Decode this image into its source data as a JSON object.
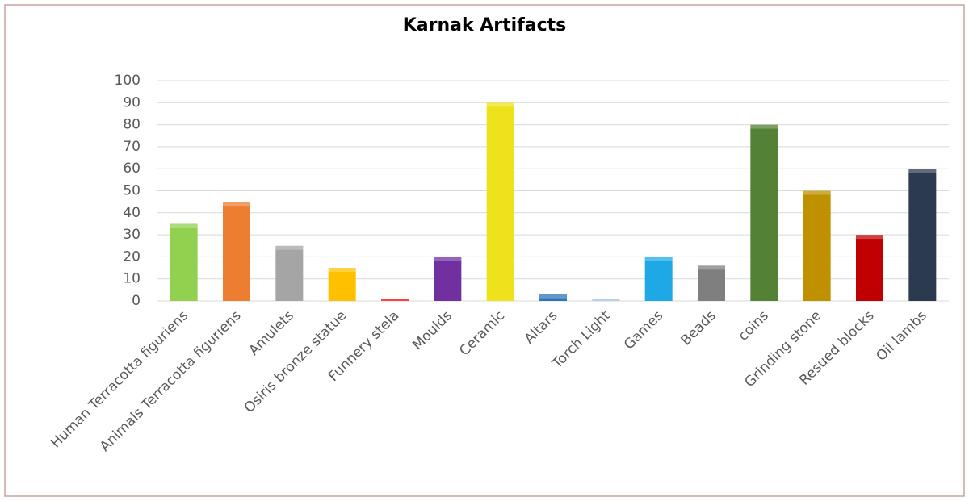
{
  "chart_data": {
    "type": "bar",
    "title": "Karnak Artifacts",
    "categories": [
      "Human  Terracotta figuriens",
      "Animals Terracotta figuriens",
      "Amulets",
      "Osiris bronze statue",
      "Funnery stela",
      "Moulds",
      "Ceramic",
      "Altars",
      "Torch Light",
      "Games",
      "Beads",
      "coins",
      "Grinding stone",
      "Resued blocks",
      "Oil lambs"
    ],
    "values": [
      35,
      45,
      25,
      15,
      1,
      20,
      90,
      3,
      1,
      20,
      16,
      80,
      50,
      30,
      60
    ],
    "colors": [
      "#92d050",
      "#ed7d31",
      "#a5a5a5",
      "#ffc000",
      "#ff0000",
      "#7030a0",
      "#eee21c",
      "#2e75b6",
      "#9dc3e6",
      "#1ea8e6",
      "#7f7f7f",
      "#538135",
      "#bf9000",
      "#c00000",
      "#2c3a4f"
    ],
    "ylim": [
      0,
      100
    ],
    "yticks": [
      0,
      10,
      20,
      30,
      40,
      50,
      60,
      70,
      80,
      90,
      100
    ],
    "grid": true
  }
}
